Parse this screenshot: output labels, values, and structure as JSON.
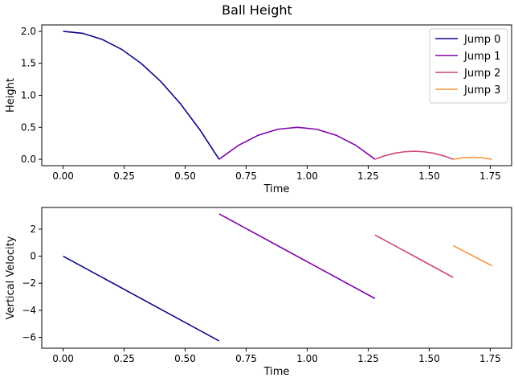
{
  "figure": {
    "title": "Ball Height"
  },
  "chart_data": [
    {
      "type": "line",
      "title": "",
      "xlabel": "Time",
      "ylabel": "Height",
      "xlim": [
        -0.0875,
        1.8375
      ],
      "ylim": [
        -0.1,
        2.1
      ],
      "xticks": [
        0.0,
        0.25,
        0.5,
        0.75,
        1.0,
        1.25,
        1.5,
        1.75
      ],
      "xtick_labels": [
        "0.00",
        "0.25",
        "0.50",
        "0.75",
        "1.00",
        "1.25",
        "1.50",
        "1.75"
      ],
      "yticks": [
        0.0,
        0.5,
        1.0,
        1.5,
        2.0
      ],
      "ytick_labels": [
        "0.0",
        "0.5",
        "1.0",
        "1.5",
        "2.0"
      ],
      "grid": false,
      "legend": "upper right",
      "series": [
        {
          "name": "Jump 0",
          "color": "#0d0887",
          "x": [
            0.0,
            0.08,
            0.16,
            0.24,
            0.32,
            0.4,
            0.48,
            0.56,
            0.639
          ],
          "y": [
            2.0,
            1.969,
            1.874,
            1.718,
            1.498,
            1.216,
            0.871,
            0.463,
            0.0
          ]
        },
        {
          "name": "Jump 1",
          "color": "#7e03a8",
          "x": [
            0.639,
            0.719,
            0.799,
            0.879,
            0.959,
            1.039,
            1.119,
            1.199,
            1.278
          ],
          "y": [
            0.0,
            0.219,
            0.375,
            0.469,
            0.5,
            0.469,
            0.375,
            0.219,
            0.0
          ]
        },
        {
          "name": "Jump 2",
          "color": "#cc4778",
          "x": [
            1.278,
            1.318,
            1.358,
            1.398,
            1.438,
            1.478,
            1.518,
            1.558,
            1.598
          ],
          "y": [
            0.0,
            0.055,
            0.094,
            0.117,
            0.125,
            0.117,
            0.094,
            0.055,
            0.0
          ]
        },
        {
          "name": "Jump 3",
          "color": "#f89540",
          "x": [
            1.598,
            1.638,
            1.678,
            1.718,
            1.757
          ],
          "y": [
            0.0,
            0.023,
            0.031,
            0.023,
            0.0
          ]
        }
      ]
    },
    {
      "type": "line",
      "title": "",
      "xlabel": "Time",
      "ylabel": "Vertical Velocity",
      "xlim": [
        -0.0875,
        1.8375
      ],
      "ylim": [
        -6.8,
        3.6
      ],
      "xticks": [
        0.0,
        0.25,
        0.5,
        0.75,
        1.0,
        1.25,
        1.5,
        1.75
      ],
      "xtick_labels": [
        "0.00",
        "0.25",
        "0.50",
        "0.75",
        "1.00",
        "1.25",
        "1.50",
        "1.75"
      ],
      "yticks": [
        2,
        0,
        -2,
        -4,
        -6
      ],
      "ytick_labels": [
        "2",
        "0",
        "−2",
        "−4",
        "−6"
      ],
      "grid": false,
      "series": [
        {
          "color": "#0d0887",
          "x": [
            0.0,
            0.639
          ],
          "y": [
            0.0,
            -6.26
          ]
        },
        {
          "color": "#7e03a8",
          "x": [
            0.639,
            1.278
          ],
          "y": [
            3.13,
            -3.13
          ]
        },
        {
          "color": "#cc4778",
          "x": [
            1.278,
            1.598
          ],
          "y": [
            1.57,
            -1.57
          ]
        },
        {
          "color": "#f89540",
          "x": [
            1.598,
            1.757
          ],
          "y": [
            0.78,
            -0.71
          ]
        }
      ]
    }
  ]
}
